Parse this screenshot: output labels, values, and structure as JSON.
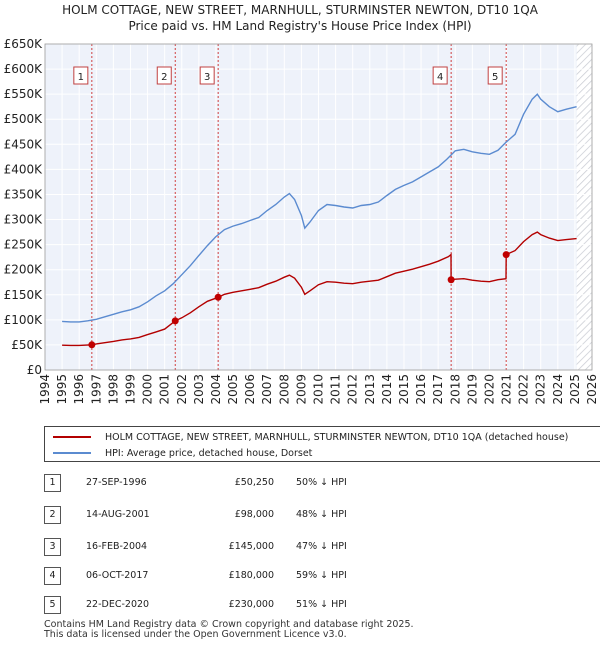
{
  "title": {
    "line1": "HOLM COTTAGE, NEW STREET, MARNHULL, STURMINSTER NEWTON, DT10 1QA",
    "line2": "Price paid vs. HM Land Registry's House Price Index (HPI)"
  },
  "chart_data": {
    "type": "line",
    "title": "HOLM COTTAGE, NEW STREET, MARNHULL, STURMINSTER NEWTON, DT10 1QA - Price paid vs. HM Land Registry's House Price Index (HPI)",
    "xlim": [
      1994,
      2026
    ],
    "ylim": [
      0,
      650000
    ],
    "y_ticks": [
      {
        "value": 0,
        "label": "£0"
      },
      {
        "value": 50000,
        "label": "£50K"
      },
      {
        "value": 100000,
        "label": "£100K"
      },
      {
        "value": 150000,
        "label": "£150K"
      },
      {
        "value": 200000,
        "label": "£200K"
      },
      {
        "value": 250000,
        "label": "£250K"
      },
      {
        "value": 300000,
        "label": "£300K"
      },
      {
        "value": 350000,
        "label": "£350K"
      },
      {
        "value": 400000,
        "label": "£400K"
      },
      {
        "value": 450000,
        "label": "£450K"
      },
      {
        "value": 500000,
        "label": "£500K"
      },
      {
        "value": 550000,
        "label": "£550K"
      },
      {
        "value": 600000,
        "label": "£600K"
      },
      {
        "value": 650000,
        "label": "£650K"
      }
    ],
    "x_ticks": [
      "1994",
      "1995",
      "1996",
      "1997",
      "1998",
      "1999",
      "2000",
      "2001",
      "2002",
      "2003",
      "2004",
      "2005",
      "2006",
      "2007",
      "2008",
      "2009",
      "2010",
      "2011",
      "2012",
      "2013",
      "2014",
      "2015",
      "2016",
      "2017",
      "2018",
      "2019",
      "2020",
      "2021",
      "2022",
      "2023",
      "2024",
      "2025",
      "2026"
    ],
    "grid": true,
    "data_end": 2025.1,
    "series": [
      {
        "name": "HPI: Average price, detached house, Dorset",
        "color": "#5b8bd0",
        "points": [
          [
            1995.0,
            97000
          ],
          [
            1995.5,
            96000
          ],
          [
            1996.0,
            96000
          ],
          [
            1996.5,
            98000
          ],
          [
            1997.0,
            101000
          ],
          [
            1997.5,
            106000
          ],
          [
            1998.0,
            111000
          ],
          [
            1998.5,
            116000
          ],
          [
            1999.0,
            120000
          ],
          [
            1999.5,
            126000
          ],
          [
            2000.0,
            136000
          ],
          [
            2000.5,
            148000
          ],
          [
            2001.0,
            158000
          ],
          [
            2001.5,
            172000
          ],
          [
            2002.0,
            190000
          ],
          [
            2002.5,
            208000
          ],
          [
            2003.0,
            228000
          ],
          [
            2003.5,
            248000
          ],
          [
            2004.0,
            266000
          ],
          [
            2004.5,
            280000
          ],
          [
            2005.0,
            287000
          ],
          [
            2005.5,
            292000
          ],
          [
            2006.0,
            298000
          ],
          [
            2006.5,
            304000
          ],
          [
            2007.0,
            318000
          ],
          [
            2007.5,
            330000
          ],
          [
            2008.0,
            345000
          ],
          [
            2008.3,
            352000
          ],
          [
            2008.6,
            340000
          ],
          [
            2009.0,
            308000
          ],
          [
            2009.2,
            283000
          ],
          [
            2009.5,
            295000
          ],
          [
            2010.0,
            318000
          ],
          [
            2010.5,
            330000
          ],
          [
            2011.0,
            328000
          ],
          [
            2011.5,
            325000
          ],
          [
            2012.0,
            323000
          ],
          [
            2012.5,
            328000
          ],
          [
            2013.0,
            330000
          ],
          [
            2013.5,
            335000
          ],
          [
            2014.0,
            348000
          ],
          [
            2014.5,
            360000
          ],
          [
            2015.0,
            368000
          ],
          [
            2015.5,
            375000
          ],
          [
            2016.0,
            385000
          ],
          [
            2016.5,
            395000
          ],
          [
            2017.0,
            405000
          ],
          [
            2017.5,
            420000
          ],
          [
            2018.0,
            437000
          ],
          [
            2018.5,
            440000
          ],
          [
            2019.0,
            435000
          ],
          [
            2019.5,
            432000
          ],
          [
            2020.0,
            430000
          ],
          [
            2020.5,
            438000
          ],
          [
            2021.0,
            455000
          ],
          [
            2021.5,
            470000
          ],
          [
            2022.0,
            510000
          ],
          [
            2022.5,
            540000
          ],
          [
            2022.8,
            550000
          ],
          [
            2023.0,
            540000
          ],
          [
            2023.5,
            525000
          ],
          [
            2024.0,
            515000
          ],
          [
            2024.5,
            520000
          ],
          [
            2025.1,
            525000
          ]
        ]
      },
      {
        "name": "HOLM COTTAGE, NEW STREET, MARNHULL, STURMINSTER NEWTON, DT10 1QA (detached house)",
        "color": "#b30000",
        "points": [
          [
            1995.0,
            49500
          ],
          [
            1995.5,
            49000
          ],
          [
            1996.0,
            49000
          ],
          [
            1996.74,
            50250
          ],
          [
            1997.0,
            52000
          ],
          [
            1997.5,
            54500
          ],
          [
            1998.0,
            57000
          ],
          [
            1998.5,
            60000
          ],
          [
            1999.0,
            62000
          ],
          [
            1999.5,
            65000
          ],
          [
            2000.0,
            70500
          ],
          [
            2000.5,
            76000
          ],
          [
            2001.0,
            81500
          ],
          [
            2001.62,
            98000
          ],
          [
            2002.0,
            104000
          ],
          [
            2002.5,
            114000
          ],
          [
            2003.0,
            126000
          ],
          [
            2003.5,
            137000
          ],
          [
            2004.13,
            145000
          ],
          [
            2004.5,
            151000
          ],
          [
            2005.0,
            155000
          ],
          [
            2005.5,
            158000
          ],
          [
            2006.0,
            161000
          ],
          [
            2006.5,
            164000
          ],
          [
            2007.0,
            171000
          ],
          [
            2007.5,
            177000
          ],
          [
            2008.0,
            185000
          ],
          [
            2008.3,
            189000
          ],
          [
            2008.6,
            183000
          ],
          [
            2009.0,
            165000
          ],
          [
            2009.2,
            151000
          ],
          [
            2009.5,
            158000
          ],
          [
            2010.0,
            170000
          ],
          [
            2010.5,
            176000
          ],
          [
            2011.0,
            175000
          ],
          [
            2011.5,
            173000
          ],
          [
            2012.0,
            172000
          ],
          [
            2012.5,
            175000
          ],
          [
            2013.0,
            177000
          ],
          [
            2013.5,
            179000
          ],
          [
            2014.0,
            186000
          ],
          [
            2014.5,
            193000
          ],
          [
            2015.0,
            197000
          ],
          [
            2015.5,
            201000
          ],
          [
            2016.0,
            206000
          ],
          [
            2016.5,
            211000
          ],
          [
            2017.0,
            217000
          ],
          [
            2017.6,
            226000
          ],
          [
            2017.75,
            230000
          ],
          [
            2017.76,
            180000
          ],
          [
            2018.0,
            181000
          ],
          [
            2018.5,
            182000
          ],
          [
            2019.0,
            179000
          ],
          [
            2019.5,
            177000
          ],
          [
            2020.0,
            176000
          ],
          [
            2020.5,
            180000
          ],
          [
            2020.97,
            182000
          ],
          [
            2020.98,
            230000
          ],
          [
            2021.5,
            238000
          ],
          [
            2022.0,
            256000
          ],
          [
            2022.5,
            270000
          ],
          [
            2022.8,
            275000
          ],
          [
            2023.0,
            270000
          ],
          [
            2023.5,
            263000
          ],
          [
            2024.0,
            258000
          ],
          [
            2024.5,
            260000
          ],
          [
            2025.1,
            262000
          ]
        ]
      }
    ],
    "sales": [
      {
        "n": "1",
        "x": 1996.74,
        "price": 50250
      },
      {
        "n": "2",
        "x": 2001.62,
        "price": 98000
      },
      {
        "n": "3",
        "x": 2004.13,
        "price": 145000
      },
      {
        "n": "4",
        "x": 2017.76,
        "price": 180000
      },
      {
        "n": "5",
        "x": 2020.98,
        "price": 230000
      }
    ]
  },
  "legend": {
    "property_label": "HOLM COTTAGE, NEW STREET, MARNHULL, STURMINSTER NEWTON, DT10 1QA (detached house)",
    "hpi_label": "HPI: Average price, detached house, Dorset",
    "property_color": "#b30000",
    "hpi_color": "#5b8bd0"
  },
  "transactions": [
    {
      "n": "1",
      "date": "27-SEP-1996",
      "price": "£50,250",
      "pct": "50% ↓ HPI"
    },
    {
      "n": "2",
      "date": "14-AUG-2001",
      "price": "£98,000",
      "pct": "48% ↓ HPI"
    },
    {
      "n": "3",
      "date": "16-FEB-2004",
      "price": "£145,000",
      "pct": "47% ↓ HPI"
    },
    {
      "n": "4",
      "date": "06-OCT-2017",
      "price": "£180,000",
      "pct": "59% ↓ HPI"
    },
    {
      "n": "5",
      "date": "22-DEC-2020",
      "price": "£230,000",
      "pct": "51% ↓ HPI"
    }
  ],
  "footer": {
    "line1": "Contains HM Land Registry data © Crown copyright and database right 2025.",
    "line2": "This data is licensed under the Open Government Licence v3.0."
  }
}
